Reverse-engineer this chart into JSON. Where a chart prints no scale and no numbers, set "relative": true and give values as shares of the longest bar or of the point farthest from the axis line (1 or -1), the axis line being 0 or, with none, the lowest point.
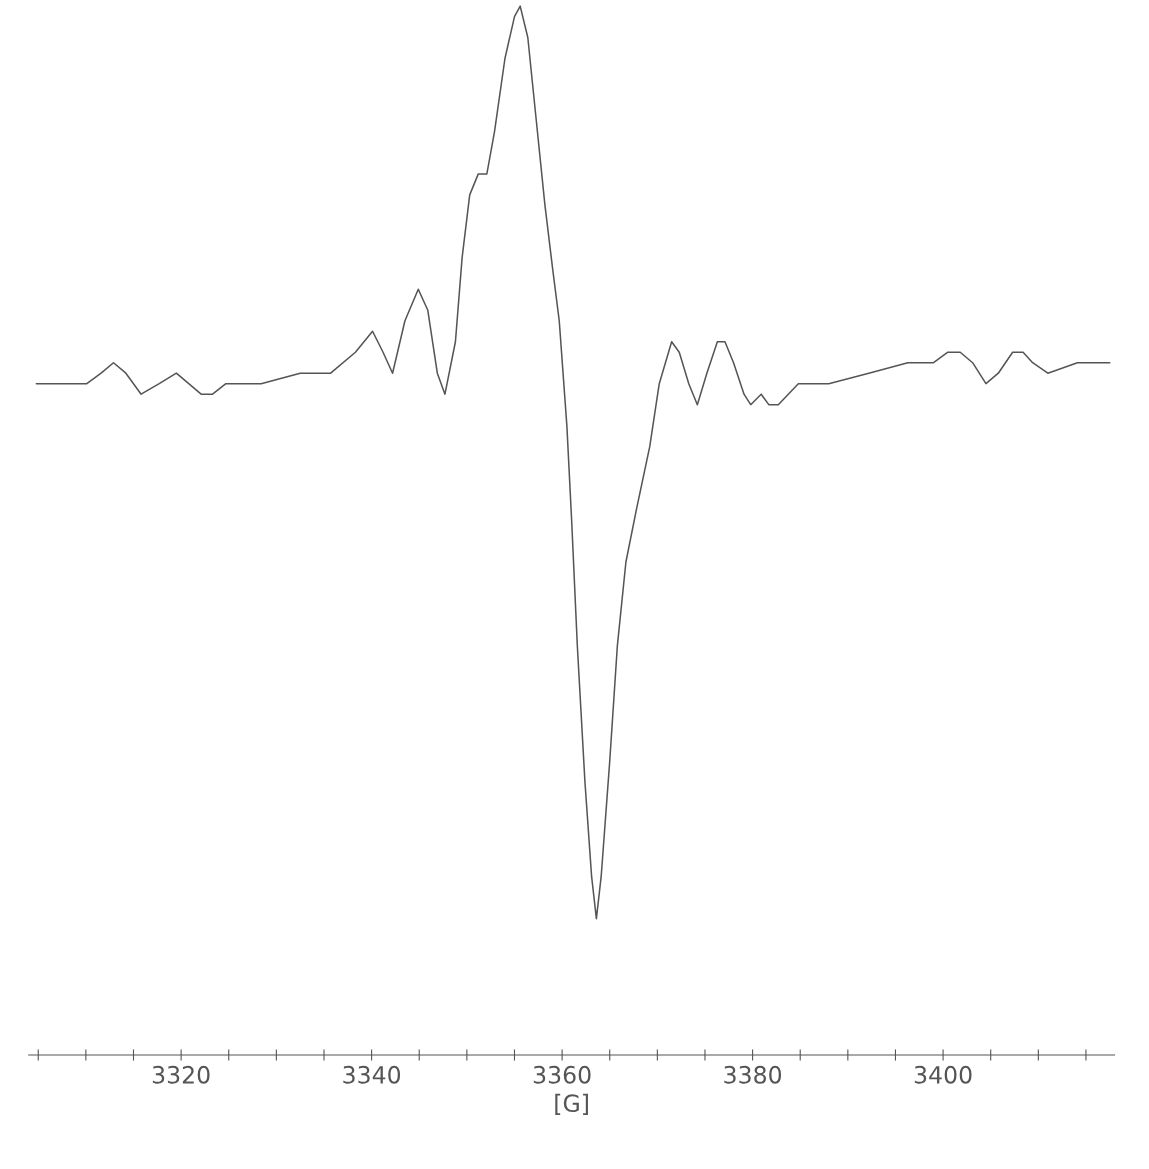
{
  "chart_data": {
    "type": "line",
    "relative": true,
    "xlabel": "[G]",
    "xlim": [
      3304,
      3418
    ],
    "xticks": [
      {
        "value": 3305,
        "label": null
      },
      {
        "value": 3310,
        "label": null
      },
      {
        "value": 3315,
        "label": null
      },
      3320,
      {
        "value": 3325,
        "label": null
      },
      {
        "value": 3330,
        "label": null
      },
      {
        "value": 3335,
        "label": null
      },
      3340,
      {
        "value": 3345,
        "label": null
      },
      {
        "value": 3350,
        "label": null
      },
      {
        "value": 3355,
        "label": null
      },
      3360,
      {
        "value": 3365,
        "label": null
      },
      {
        "value": 3370,
        "label": null
      },
      {
        "value": 3375,
        "label": null
      },
      3380,
      {
        "value": 3385,
        "label": null
      },
      {
        "value": 3390,
        "label": null
      },
      {
        "value": 3395,
        "label": null
      },
      3400,
      {
        "value": 3405,
        "label": null
      },
      {
        "value": 3410,
        "label": null
      },
      {
        "value": 3415,
        "label": null
      }
    ],
    "grid": false,
    "legend": false,
    "tick_labels": "x",
    "marker": "none",
    "line_style": "solid",
    "series": [
      {
        "color": "#555555",
        "x": [
          3304.8,
          3307.5,
          3310.1,
          3311.6,
          3312.9,
          3314.2,
          3315.8,
          3317.7,
          3319.5,
          3320.8,
          3322.1,
          3323.3,
          3324.7,
          3328.4,
          3332.5,
          3335.7,
          3338.3,
          3340.1,
          3341.2,
          3342.2,
          3343.5,
          3344.9,
          3345.9,
          3346.9,
          3347.7,
          3348.8,
          3349.5,
          3350.3,
          3351.2,
          3352.1,
          3352.9,
          3354.0,
          3355.0,
          3355.6,
          3356.4,
          3357.3,
          3358.2,
          3359.0,
          3359.7,
          3360.5,
          3361.0,
          3361.6,
          3362.4,
          3363.1,
          3363.6,
          3364.1,
          3365.0,
          3365.8,
          3366.7,
          3367.8,
          3369.2,
          3370.2,
          3371.5,
          3372.3,
          3373.3,
          3374.2,
          3375.2,
          3376.3,
          3377.1,
          3378.0,
          3379.1,
          3379.8,
          3380.9,
          3381.7,
          3382.7,
          3384.8,
          3388.0,
          3392.2,
          3396.3,
          3399.0,
          3400.5,
          3401.8,
          3403.1,
          3404.5,
          3405.8,
          3407.3,
          3408.4,
          3409.4,
          3411.0,
          3414.1,
          3417.5
        ],
        "values": [
          0.64,
          0.64,
          0.64,
          0.65,
          0.66,
          0.65,
          0.63,
          0.64,
          0.65,
          0.64,
          0.63,
          0.63,
          0.64,
          0.64,
          0.65,
          0.65,
          0.67,
          0.69,
          0.67,
          0.65,
          0.7,
          0.73,
          0.71,
          0.65,
          0.63,
          0.68,
          0.76,
          0.82,
          0.84,
          0.84,
          0.88,
          0.95,
          0.99,
          1,
          0.97,
          0.89,
          0.81,
          0.75,
          0.7,
          0.6,
          0.51,
          0.39,
          0.26,
          0.17,
          0.13,
          0.17,
          0.28,
          0.39,
          0.47,
          0.52,
          0.58,
          0.64,
          0.68,
          0.67,
          0.64,
          0.62,
          0.65,
          0.68,
          0.68,
          0.66,
          0.63,
          0.62,
          0.63,
          0.62,
          0.62,
          0.64,
          0.64,
          0.65,
          0.66,
          0.66,
          0.67,
          0.67,
          0.66,
          0.64,
          0.65,
          0.67,
          0.67,
          0.66,
          0.65,
          0.66,
          0.66
        ]
      }
    ]
  }
}
